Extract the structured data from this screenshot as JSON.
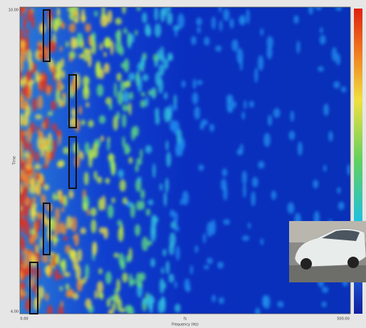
{
  "axes": {
    "y_top": "10.00",
    "y_bottom": "4.00",
    "y_label": "Time",
    "x_left": "0.00",
    "x_mid": "fs",
    "x_right": "500.00",
    "x_label": "Frequency (Hz)"
  }
}
